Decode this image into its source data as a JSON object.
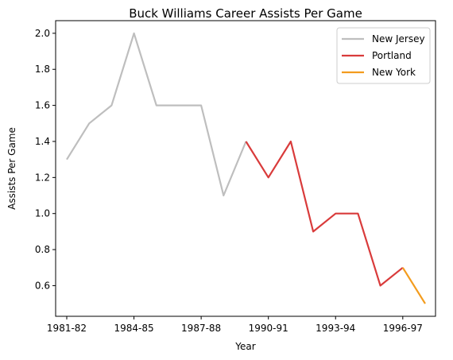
{
  "chart_data": {
    "type": "line",
    "title": "Buck Williams Career Assists Per Game",
    "xlabel": "Year",
    "ylabel": "Assists Per Game",
    "x_categories": [
      "1981-82",
      "1982-83",
      "1983-84",
      "1984-85",
      "1985-86",
      "1986-87",
      "1987-88",
      "1988-89",
      "1989-90",
      "1990-91",
      "1991-92",
      "1992-93",
      "1993-94",
      "1994-95",
      "1995-96",
      "1996-97",
      "1997-98"
    ],
    "x_tick_labels": [
      "1981-82",
      "1984-85",
      "1987-88",
      "1990-91",
      "1993-94",
      "1996-97"
    ],
    "y_ticks": [
      "0.6",
      "0.8",
      "1.0",
      "1.2",
      "1.4",
      "1.6",
      "1.8",
      "2.0"
    ],
    "ylim": [
      0.43,
      2.07
    ],
    "grid": false,
    "legend_position": "top-right",
    "series": [
      {
        "name": "New Jersey",
        "color": "#bebebe",
        "x": [
          "1981-82",
          "1982-83",
          "1983-84",
          "1984-85",
          "1985-86",
          "1986-87",
          "1987-88",
          "1988-89",
          "1989-90"
        ],
        "values": [
          1.3,
          1.5,
          1.6,
          2.0,
          1.6,
          1.6,
          1.6,
          1.1,
          1.4
        ]
      },
      {
        "name": "Portland",
        "color": "#d93b3b",
        "x": [
          "1989-90",
          "1990-91",
          "1991-92",
          "1992-93",
          "1993-94",
          "1994-95",
          "1995-96",
          "1996-97"
        ],
        "values": [
          1.4,
          1.2,
          1.4,
          0.9,
          1.0,
          1.0,
          0.6,
          0.7
        ]
      },
      {
        "name": "New York",
        "color": "#f39c1e",
        "x": [
          "1996-97",
          "1997-98"
        ],
        "values": [
          0.7,
          0.5
        ]
      }
    ]
  }
}
